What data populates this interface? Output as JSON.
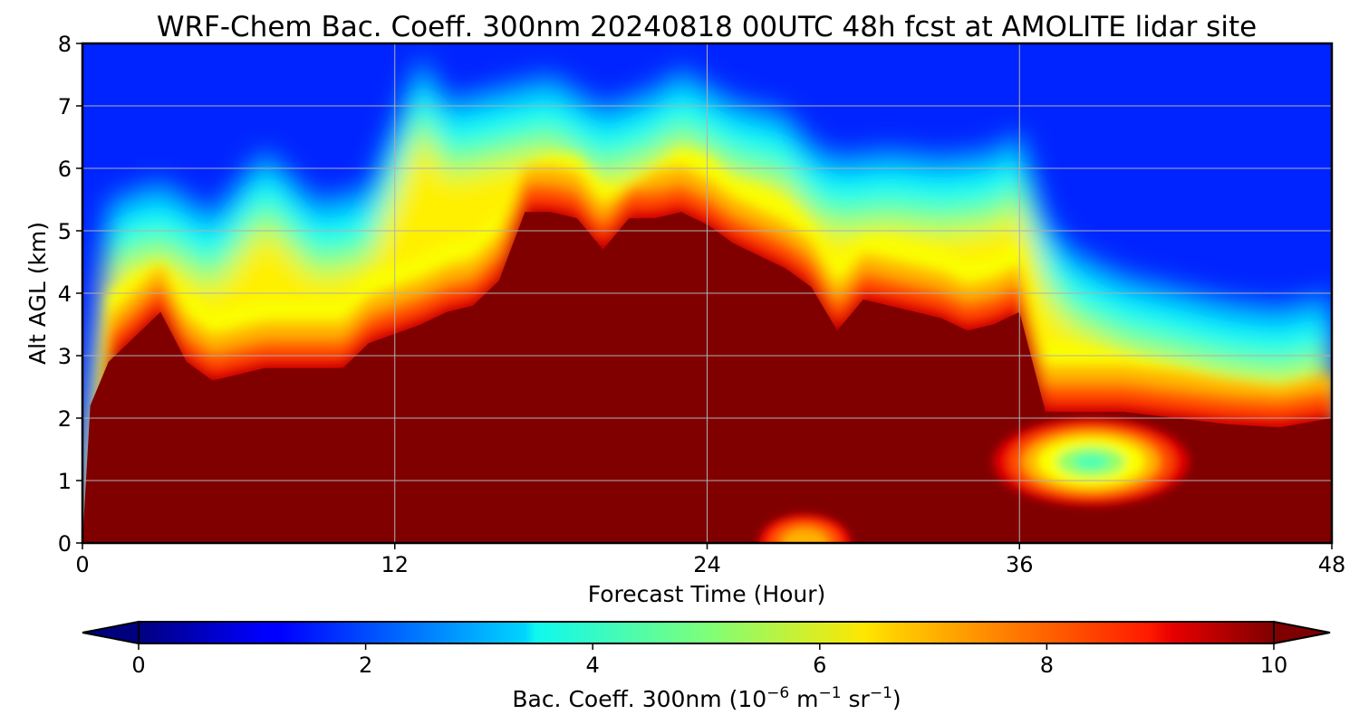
{
  "chart_data": {
    "type": "heatmap",
    "title": "WRF-Chem Bac. Coeff. 300nm  20240818 00UTC 48h fcst at AMOLITE lidar site",
    "xlabel": "Forecast Time (Hour)",
    "ylabel": "Alt AGL (km)",
    "xlim": [
      0,
      48
    ],
    "ylim": [
      0,
      8
    ],
    "x_ticks": [
      "0",
      "12",
      "24",
      "36",
      "48"
    ],
    "y_ticks": [
      "0",
      "1",
      "2",
      "3",
      "4",
      "5",
      "6",
      "7",
      "8"
    ],
    "grid": true,
    "colormap": "jet",
    "colorbar": {
      "label_main": "Bac. Coeff. 300nm  (10",
      "label_exp1": "−6",
      "label_mid": " m",
      "label_exp2": "−1",
      "label_mid2": " sr",
      "label_exp3": "−1",
      "label_end": ")",
      "range": [
        0,
        10
      ],
      "ticks": [
        "0",
        "2",
        "4",
        "6",
        "8",
        "10"
      ],
      "extend": "both",
      "orientation": "horizontal"
    },
    "layer_top_km": {
      "x": [
        0,
        0.3,
        1,
        3,
        4,
        5,
        7,
        8,
        10,
        11,
        13,
        14,
        15,
        16,
        17,
        18,
        19,
        20,
        21,
        22,
        23,
        24,
        25,
        26,
        27,
        28,
        29,
        30,
        31,
        32,
        33,
        34,
        35,
        36,
        37,
        38,
        40,
        42,
        44,
        46,
        48
      ],
      "y": [
        0.0,
        2.2,
        2.9,
        3.7,
        2.9,
        2.6,
        2.8,
        2.8,
        2.8,
        3.2,
        3.5,
        3.7,
        3.8,
        4.2,
        5.3,
        5.3,
        5.2,
        4.7,
        5.2,
        5.2,
        5.3,
        5.1,
        4.8,
        4.6,
        4.4,
        4.1,
        3.4,
        3.9,
        3.8,
        3.7,
        3.6,
        3.4,
        3.5,
        3.7,
        2.1,
        2.1,
        2.1,
        2.0,
        1.9,
        1.85,
        2.0
      ]
    },
    "plume_top_km": {
      "x": [
        0,
        1,
        3,
        5,
        7,
        9,
        11,
        13,
        14,
        16,
        18,
        20,
        22,
        23,
        25,
        27,
        28,
        29,
        31,
        33,
        35,
        36,
        37,
        38,
        40,
        42,
        44,
        46,
        48
      ],
      "y": [
        0.0,
        4.2,
        4.5,
        4.0,
        5.0,
        4.2,
        4.4,
        6.5,
        5.8,
        6.0,
        6.2,
        5.7,
        6.0,
        6.3,
        5.8,
        5.6,
        5.1,
        4.9,
        5.0,
        4.9,
        5.0,
        5.3,
        3.9,
        3.4,
        3.0,
        2.8,
        2.6,
        2.5,
        2.7
      ]
    },
    "clean_pocket_km": {
      "x_range": [
        35,
        42.5
      ],
      "y_range": [
        0.6,
        2.0
      ],
      "min_value": 4.5
    },
    "surface_pocket_km": {
      "x_range": [
        26,
        29.5
      ],
      "y_range": [
        0,
        0.45
      ],
      "min_value": 7.0
    }
  }
}
